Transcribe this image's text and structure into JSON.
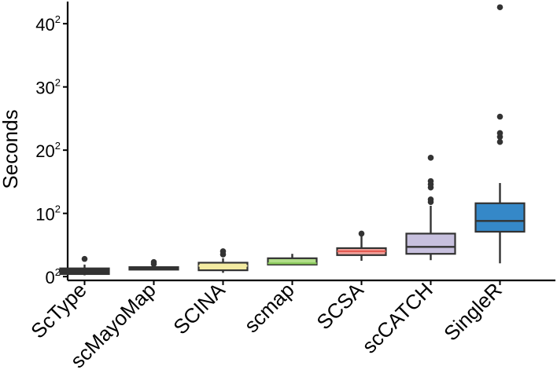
{
  "chart_data": {
    "type": "boxplot",
    "title": "",
    "xlabel": "",
    "ylabel": "Seconds",
    "y_scale": "sqrt",
    "ylim_sqrt_units": [
      -0.6,
      43.5
    ],
    "y_ticks": [
      {
        "base": "0",
        "exp": "2",
        "value_sqrt": 0
      },
      {
        "base": "10",
        "exp": "2",
        "value_sqrt": 10
      },
      {
        "base": "20",
        "exp": "2",
        "value_sqrt": 20
      },
      {
        "base": "30",
        "exp": "2",
        "value_sqrt": 30
      },
      {
        "base": "40",
        "exp": "2",
        "value_sqrt": 40
      }
    ],
    "categories": [
      "ScType",
      "scMayoMap",
      "SCINA",
      "scmap",
      "SCSA",
      "scCATCH",
      "SingleR"
    ],
    "boxes": [
      {
        "name": "ScType",
        "fill": "#333333",
        "median_color": "#333333",
        "whisker_low": 0.2,
        "q1": 0.4,
        "median": 0.9,
        "q3": 1.3,
        "whisker_high": 1.9,
        "outliers": [
          2.8
        ]
      },
      {
        "name": "scMayoMap",
        "fill": "#333333",
        "median_color": "#333333",
        "whisker_low": 1.1,
        "q1": 1.1,
        "median": 1.3,
        "q3": 1.5,
        "whisker_high": 1.6,
        "outliers": [
          2.0,
          2.3
        ]
      },
      {
        "name": "SCINA",
        "fill": "#F3EBA2",
        "median_color": "#F3EBA2",
        "whisker_low": 0.6,
        "q1": 1.0,
        "median": 1.7,
        "q3": 2.2,
        "whisker_high": 2.9,
        "outliers": [
          3.5,
          4.0
        ]
      },
      {
        "name": "scmap",
        "fill": "#B1DE89",
        "median_color": "#8CCB5E",
        "whisker_low": 1.9,
        "q1": 1.9,
        "median": 2.1,
        "q3": 2.9,
        "whisker_high": 3.6,
        "outliers": []
      },
      {
        "name": "SCSA",
        "fill": "#F4A6A0",
        "median_color": "#E35B52",
        "whisker_low": 2.5,
        "q1": 3.4,
        "median": 4.0,
        "q3": 4.5,
        "whisker_high": 6.4,
        "outliers": [
          6.8
        ]
      },
      {
        "name": "scCATCH",
        "fill": "#C7C0DE",
        "median_color": "#333333",
        "whisker_low": 2.6,
        "q1": 3.6,
        "median": 4.7,
        "q3": 6.8,
        "whisker_high": 11.2,
        "outliers": [
          11.8,
          12.2,
          14.1,
          14.6,
          15.1,
          18.8
        ]
      },
      {
        "name": "SingleR",
        "fill": "#3588C8",
        "median_color": "#333333",
        "whisker_low": 2.1,
        "q1": 7.1,
        "median": 8.8,
        "q3": 11.6,
        "whisker_high": 14.8,
        "outliers": [
          21.3,
          22.1,
          22.7,
          25.3,
          42.6
        ]
      }
    ]
  }
}
